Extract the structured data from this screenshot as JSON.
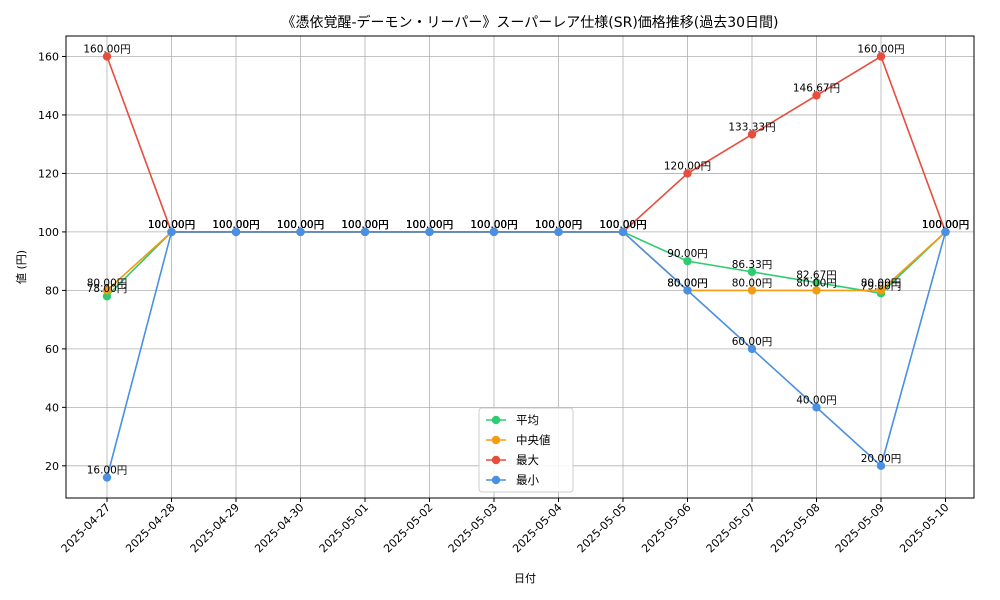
{
  "chart_data": {
    "type": "line",
    "title": "《憑依覚醒-デーモン・リーパー》スーパーレア仕様(SR)価格推移(過去30日間)",
    "xlabel": "日付",
    "ylabel": "値 (円)",
    "categories": [
      "2025-04-27",
      "2025-04-28",
      "2025-04-29",
      "2025-04-30",
      "2025-05-01",
      "2025-05-02",
      "2025-05-03",
      "2025-05-04",
      "2025-05-05",
      "2025-05-06",
      "2025-05-07",
      "2025-05-08",
      "2025-05-09",
      "2025-05-10"
    ],
    "yticks": [
      20,
      40,
      60,
      80,
      100,
      120,
      140,
      160
    ],
    "ylim": [
      9,
      167
    ],
    "grid": true,
    "legend_position": "bottom-center",
    "series": [
      {
        "name": "平均",
        "color": "#2ecc71",
        "values": [
          78.0,
          100,
          100,
          100,
          100,
          100,
          100,
          100,
          100,
          90.0,
          86.33,
          82.67,
          79.0,
          100
        ]
      },
      {
        "name": "中央値",
        "color": "#f39c12",
        "values": [
          80.0,
          100,
          100,
          100,
          100,
          100,
          100,
          100,
          100,
          80.0,
          80.0,
          80.0,
          80.0,
          100
        ]
      },
      {
        "name": "最大",
        "color": "#e74c3c",
        "values": [
          160.0,
          100,
          100,
          100,
          100,
          100,
          100,
          100,
          100,
          120.0,
          133.33,
          146.67,
          160.0,
          100
        ]
      },
      {
        "name": "最小",
        "color": "#4a90e2",
        "values": [
          16.0,
          100,
          100,
          100,
          100,
          100,
          100,
          100,
          100,
          80.0,
          60.0,
          40.0,
          20.0,
          100
        ]
      }
    ],
    "label_suffix": "円"
  }
}
